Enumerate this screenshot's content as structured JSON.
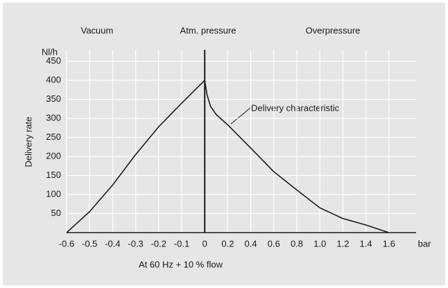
{
  "chart_data": {
    "type": "line",
    "top_labels": [
      "Vacuum",
      "Atm. pressure",
      "Overpressure"
    ],
    "y_unit": "Nl/h",
    "y_label": "Delivery rate",
    "x_unit": "bar",
    "footer": "At 60 Hz + 10 % flow",
    "annotation": "Delivery characteristic",
    "x": [
      -0.6,
      -0.5,
      -0.4,
      -0.3,
      -0.2,
      -0.1,
      0,
      0.02,
      0.05,
      0.1,
      0.2,
      0.4,
      0.6,
      0.8,
      1.0,
      1.2,
      1.4,
      1.6
    ],
    "values": [
      0,
      55,
      125,
      205,
      278,
      340,
      400,
      362,
      332,
      310,
      283,
      222,
      160,
      112,
      65,
      37,
      20,
      0
    ],
    "color": "#1a1a1a",
    "ylim": [
      0,
      480
    ],
    "yticks": [
      50,
      100,
      150,
      200,
      250,
      300,
      350,
      400,
      450
    ],
    "xticks": [
      -0.6,
      -0.5,
      -0.4,
      -0.3,
      -0.2,
      -0.1,
      0,
      0.2,
      0.4,
      0.6,
      0.8,
      {
        "value": 1,
        "label": "1.0"
      },
      1.2,
      1.4,
      1.6
    ],
    "grid": true
  }
}
